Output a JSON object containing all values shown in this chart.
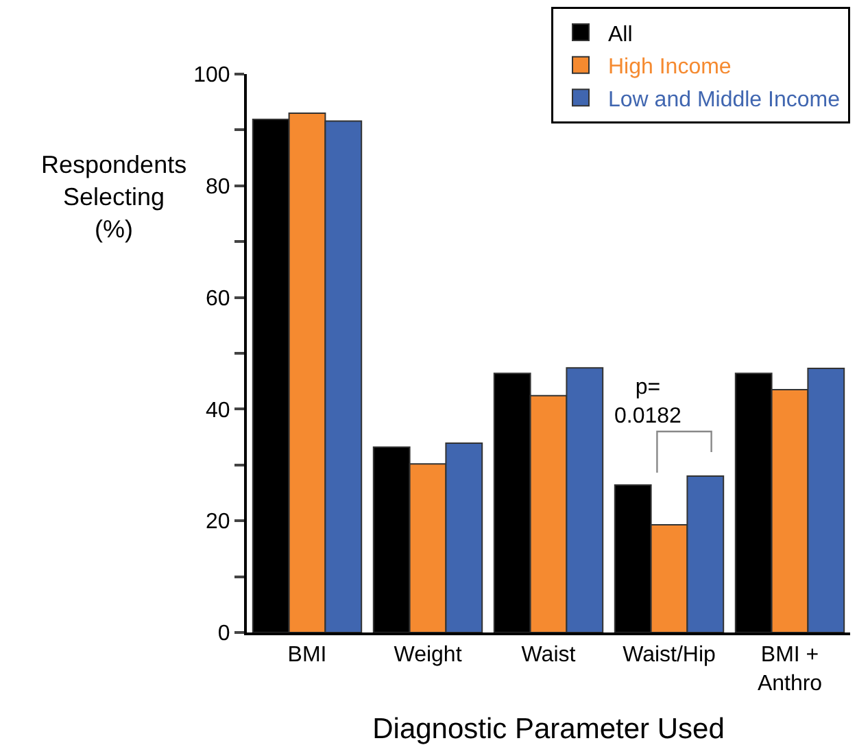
{
  "chart_data": {
    "type": "bar",
    "xlabel": "Diagnostic Parameter Used",
    "ylabel": "Respondents\nSelecting\n(%)",
    "categories": [
      "BMI",
      "Weight",
      "Waist",
      "Waist/Hip",
      "BMI +\nAnthro"
    ],
    "series": [
      {
        "name": "All",
        "color": "#000000",
        "values": [
          91.9,
          33.2,
          46.4,
          26.4,
          46.4
        ]
      },
      {
        "name": "High Income",
        "color": "#f58a30",
        "values": [
          93.0,
          30.2,
          42.4,
          19.3,
          43.5
        ]
      },
      {
        "name": "Low and Middle Income",
        "color": "#4066b0",
        "values": [
          91.6,
          33.9,
          47.4,
          28.0,
          47.3
        ]
      }
    ],
    "ylim": [
      0,
      100
    ],
    "yticks": [
      0,
      {
        "value": 10,
        "label": null
      },
      20,
      {
        "value": 30,
        "label": null
      },
      40,
      {
        "value": 50,
        "label": null
      },
      60,
      {
        "value": 70,
        "label": null
      },
      80,
      {
        "value": 90,
        "label": null
      },
      100
    ],
    "annotations": [
      "p=\n0.0182"
    ],
    "grid": false,
    "legend": "top right"
  }
}
